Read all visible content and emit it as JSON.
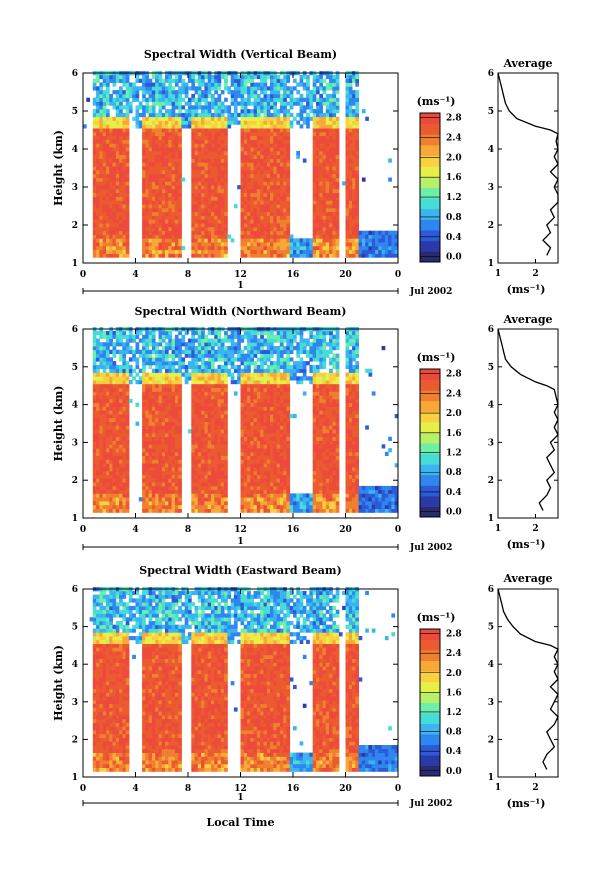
{
  "chart_data": [
    {
      "type": "heatmap",
      "title": "Spectral Width (Vertical Beam)",
      "xlabel": "",
      "ylabel": "Height (km)",
      "xticks": [
        "0",
        "4",
        "8",
        "12",
        "16",
        "20",
        "0"
      ],
      "yticks": [
        "1",
        "2",
        "3",
        "4",
        "5",
        "6"
      ],
      "xlim": [
        0,
        24
      ],
      "ylim": [
        1,
        6
      ],
      "date_row": {
        "label": "1",
        "date": "Jul 2002"
      },
      "colorbar": {
        "unit": "(ms⁻¹)",
        "ticks": [
          "0.0",
          "0.4",
          "0.8",
          "1.2",
          "1.6",
          "2.0",
          "2.4",
          "2.8"
        ],
        "range": [
          0,
          3.0
        ]
      },
      "rain_periods": [
        [
          0.7,
          3.4
        ],
        [
          4.5,
          7.4
        ],
        [
          8.2,
          10.8
        ],
        [
          11.8,
          15.7
        ],
        [
          17.5,
          19.5
        ],
        [
          20.0,
          20.8
        ]
      ],
      "rain_top": 4.6,
      "average": {
        "title": "Average",
        "xlabel": "(ms⁻¹)",
        "xticks": [
          "1",
          "2"
        ],
        "yticks": [
          "1",
          "2",
          "3",
          "4",
          "5",
          "6"
        ],
        "xlim": [
          1,
          2.6
        ],
        "heights": [
          1.2,
          1.4,
          1.6,
          1.8,
          2.0,
          2.2,
          2.4,
          2.6,
          2.8,
          3.0,
          3.2,
          3.4,
          3.6,
          3.8,
          4.0,
          4.2,
          4.4,
          4.5,
          4.6,
          4.8,
          5.0,
          5.2,
          5.4,
          5.6,
          5.8,
          6.0
        ],
        "values": [
          2.3,
          2.4,
          2.2,
          2.4,
          2.3,
          2.5,
          2.4,
          2.6,
          2.6,
          2.5,
          2.6,
          2.4,
          2.6,
          2.5,
          2.6,
          2.55,
          2.6,
          2.4,
          2.0,
          1.5,
          1.3,
          1.2,
          1.15,
          1.1,
          1.05,
          1.0
        ]
      }
    },
    {
      "type": "heatmap",
      "title": "Spectral Width (Northward Beam)",
      "xlabel": "",
      "ylabel": "Height (km)",
      "xticks": [
        "0",
        "4",
        "8",
        "12",
        "16",
        "20",
        "0"
      ],
      "yticks": [
        "1",
        "2",
        "3",
        "4",
        "5",
        "6"
      ],
      "xlim": [
        0,
        24
      ],
      "ylim": [
        1,
        6
      ],
      "date_row": {
        "label": "1",
        "date": "Jul 2002"
      },
      "colorbar": {
        "unit": "(ms⁻¹)",
        "ticks": [
          "0.0",
          "0.4",
          "0.8",
          "1.2",
          "1.6",
          "2.0",
          "2.4",
          "2.8"
        ],
        "range": [
          0,
          3.0
        ]
      },
      "rain_periods": [
        [
          0.7,
          3.4
        ],
        [
          4.5,
          7.4
        ],
        [
          8.2,
          10.8
        ],
        [
          11.8,
          15.7
        ],
        [
          17.5,
          19.5
        ],
        [
          20.0,
          20.8
        ]
      ],
      "rain_top": 4.6,
      "average": {
        "title": "Average",
        "xlabel": "(ms⁻¹)",
        "xticks": [
          "1",
          "2"
        ],
        "yticks": [
          "1",
          "2",
          "3",
          "4",
          "5",
          "6"
        ],
        "xlim": [
          1,
          2.6
        ],
        "heights": [
          1.2,
          1.4,
          1.6,
          1.8,
          2.0,
          2.2,
          2.4,
          2.6,
          2.8,
          3.0,
          3.2,
          3.4,
          3.6,
          3.8,
          4.0,
          4.2,
          4.4,
          4.5,
          4.6,
          4.8,
          5.0,
          5.2,
          5.4,
          5.6,
          5.8,
          6.0
        ],
        "values": [
          2.2,
          2.1,
          2.3,
          2.4,
          2.3,
          2.5,
          2.4,
          2.3,
          2.5,
          2.4,
          2.6,
          2.5,
          2.6,
          2.5,
          2.6,
          2.55,
          2.5,
          2.3,
          2.0,
          1.6,
          1.35,
          1.2,
          1.15,
          1.1,
          1.05,
          1.0
        ]
      }
    },
    {
      "type": "heatmap",
      "title": "Spectral Width (Eastward Beam)",
      "xlabel": "Local Time",
      "ylabel": "Height (km)",
      "xticks": [
        "0",
        "4",
        "8",
        "12",
        "16",
        "20",
        "0"
      ],
      "yticks": [
        "1",
        "2",
        "3",
        "4",
        "5",
        "6"
      ],
      "xlim": [
        0,
        24
      ],
      "ylim": [
        1,
        6
      ],
      "date_row": {
        "label": "1",
        "date": "Jul 2002"
      },
      "colorbar": {
        "unit": "(ms⁻¹)",
        "ticks": [
          "0.0",
          "0.4",
          "0.8",
          "1.2",
          "1.6",
          "2.0",
          "2.4",
          "2.8"
        ],
        "range": [
          0,
          3.0
        ]
      },
      "rain_periods": [
        [
          0.7,
          3.4
        ],
        [
          4.5,
          7.4
        ],
        [
          8.2,
          10.8
        ],
        [
          11.8,
          15.7
        ],
        [
          17.5,
          19.5
        ],
        [
          20.0,
          20.8
        ]
      ],
      "rain_top": 4.6,
      "average": {
        "title": "Average",
        "xlabel": "(ms⁻¹)",
        "xticks": [
          "1",
          "2"
        ],
        "yticks": [
          "1",
          "2",
          "3",
          "4",
          "5",
          "6"
        ],
        "xlim": [
          1,
          2.6
        ],
        "heights": [
          1.2,
          1.4,
          1.6,
          1.8,
          2.0,
          2.2,
          2.4,
          2.6,
          2.8,
          3.0,
          3.2,
          3.4,
          3.6,
          3.8,
          4.0,
          4.2,
          4.4,
          4.5,
          4.6,
          4.8,
          5.0,
          5.2,
          5.4,
          5.6,
          5.8,
          6.0
        ],
        "values": [
          2.3,
          2.2,
          2.3,
          2.5,
          2.4,
          2.3,
          2.5,
          2.6,
          2.4,
          2.5,
          2.6,
          2.4,
          2.6,
          2.5,
          2.6,
          2.5,
          2.6,
          2.4,
          2.0,
          1.6,
          1.4,
          1.25,
          1.15,
          1.1,
          1.05,
          1.0
        ]
      }
    }
  ],
  "colors": {
    "scale": [
      "#2a2a6e",
      "#2a3aa8",
      "#2c5ad8",
      "#2f86ee",
      "#3bb4f0",
      "#46dcd8",
      "#6cf0a8",
      "#b8f06a",
      "#e8f048",
      "#f8d040",
      "#f8a838",
      "#f08030",
      "#ec5a30",
      "#ec4a3a"
    ]
  }
}
